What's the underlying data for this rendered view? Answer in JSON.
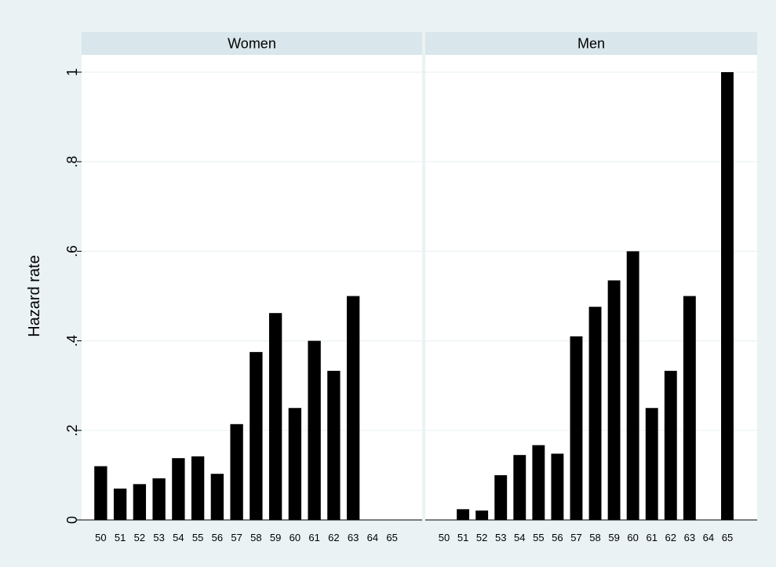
{
  "chart_data": {
    "type": "bar",
    "ylabel": "Hazard rate",
    "ylim": [
      0,
      1
    ],
    "yticks": [
      0,
      0.2,
      0.4,
      0.6,
      0.8,
      1
    ],
    "ytick_labels": [
      "0",
      ".2",
      ".4",
      ".6",
      ".8",
      "1"
    ],
    "grid": true,
    "categories": [
      "50",
      "51",
      "52",
      "53",
      "54",
      "55",
      "56",
      "57",
      "58",
      "59",
      "60",
      "61",
      "62",
      "63",
      "64",
      "65"
    ],
    "panels": [
      {
        "title": "Women",
        "values": [
          0.12,
          0.07,
          0.08,
          0.093,
          0.138,
          0.142,
          0.103,
          0.214,
          0.375,
          0.462,
          0.25,
          0.4,
          0.333,
          0.5,
          0,
          0
        ]
      },
      {
        "title": "Men",
        "values": [
          0,
          0.024,
          0.021,
          0.1,
          0.145,
          0.167,
          0.148,
          0.41,
          0.476,
          0.535,
          0.6,
          0.25,
          0.333,
          0.5,
          0,
          1.0
        ]
      }
    ],
    "colors": {
      "outer_background": "#eaf2f3",
      "plot_background": "#ffffff",
      "header_background": "#d9e6eb",
      "bar": "#000000",
      "grid": "#eaf2f3"
    }
  }
}
